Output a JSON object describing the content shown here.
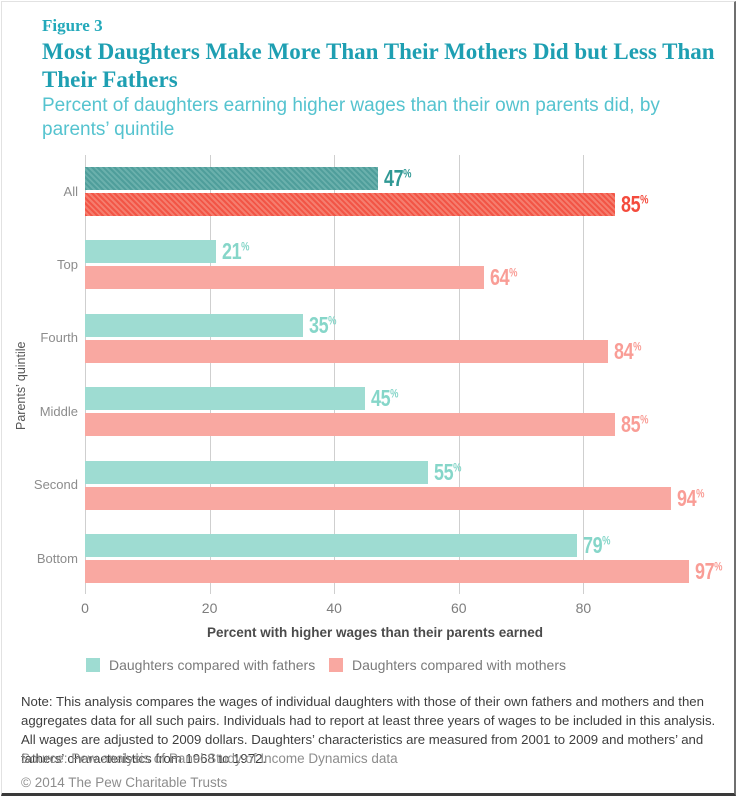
{
  "header": {
    "figure_label": "Figure 3",
    "title": "Most Daughters Make More Than Their Mothers Did but Less Than Their Fathers",
    "subtitle": "Percent of daughters earning higher wages than their own parents did, by parents’ quintile"
  },
  "chart_data": {
    "type": "bar",
    "orientation": "horizontal",
    "categories": [
      "All",
      "Top",
      "Fourth",
      "Middle",
      "Second",
      "Bottom"
    ],
    "series": [
      {
        "name": "Daughters compared with fathers",
        "values": [
          47,
          21,
          35,
          45,
          55,
          79
        ],
        "color": "#9edcd2",
        "emphasis_color": "#4f9e9b",
        "label_color": "#86d6c9",
        "emphasis_label_color": "#2f9894"
      },
      {
        "name": "Daughters compared with mothers",
        "values": [
          85,
          64,
          84,
          85,
          94,
          97
        ],
        "color": "#f9a8a1",
        "emphasis_color": "#f25546",
        "label_color": "#f99d96",
        "emphasis_label_color": "#f44b3d"
      }
    ],
    "value_suffix": "%",
    "xlabel": "Percent with higher wages than their parents earned",
    "ylabel": "Parents’ quintile",
    "xticks": [
      0,
      20,
      40,
      60,
      80
    ],
    "xlim": [
      0,
      103
    ],
    "grid": true,
    "legend_position": "bottom",
    "emphasized_category": "All",
    "emphasis_style": "hatched"
  },
  "footer": {
    "note": "Note: This analysis compares the wages of individual daughters with those of their own fathers and mothers and then aggregates data for all such pairs. Individuals had to report at least three years of wages to be included in this analysis. All wages are adjusted to 2009 dollars. Daughters’ characteristics are measured from 2001 to 2009 and mothers’ and fathers’ characteristics from 1968 to 1972.",
    "source": "Source: Pew analysis of Panel Study of Income Dynamics data",
    "copyright": "© 2014 The Pew Charitable Trusts"
  },
  "colors": {
    "brand_teal_dark": "#1e9fb2",
    "brand_teal_light": "#55c3cf",
    "gridline": "#cfcfcf"
  }
}
